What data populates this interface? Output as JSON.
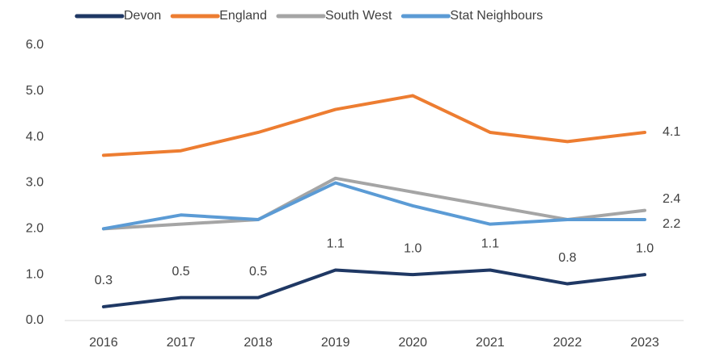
{
  "chart_data": {
    "type": "line",
    "categories": [
      "2016",
      "2017",
      "2018",
      "2019",
      "2020",
      "2021",
      "2022",
      "2023"
    ],
    "series": [
      {
        "name": "Devon",
        "color": "#1f3864",
        "values": [
          0.3,
          0.5,
          0.5,
          1.1,
          1.0,
          1.1,
          0.8,
          1.0
        ],
        "value_labels": [
          "0.3",
          "0.5",
          "0.5",
          "1.1",
          "1.0",
          "1.1",
          "0.8",
          "1.0"
        ]
      },
      {
        "name": "England",
        "color": "#ed7d31",
        "values": [
          3.6,
          3.7,
          4.1,
          4.6,
          4.9,
          4.1,
          3.9,
          4.1
        ],
        "value_labels": [
          null,
          null,
          null,
          null,
          null,
          null,
          null,
          "4.1"
        ]
      },
      {
        "name": "South West",
        "color": "#a5a5a5",
        "values": [
          2.0,
          2.1,
          2.2,
          3.1,
          2.8,
          2.5,
          2.2,
          2.4
        ],
        "value_labels": [
          null,
          null,
          null,
          null,
          null,
          null,
          null,
          "2.4"
        ]
      },
      {
        "name": "Stat Neighbours",
        "color": "#5b9bd5",
        "values": [
          2.0,
          2.3,
          2.2,
          3.0,
          2.5,
          2.1,
          2.2,
          2.2
        ],
        "value_labels": [
          null,
          null,
          null,
          null,
          null,
          null,
          null,
          "2.2"
        ]
      }
    ],
    "ylim": [
      0,
      6
    ],
    "yticks": [
      {
        "value": 0,
        "label": "0.0"
      },
      {
        "value": 1,
        "label": "1.0"
      },
      {
        "value": 2,
        "label": "2.0"
      },
      {
        "value": 3,
        "label": "3.0"
      },
      {
        "value": 4,
        "label": "4.0"
      },
      {
        "value": 5,
        "label": "5.0"
      },
      {
        "value": 6,
        "label": "6.0"
      }
    ],
    "legend": "top"
  }
}
